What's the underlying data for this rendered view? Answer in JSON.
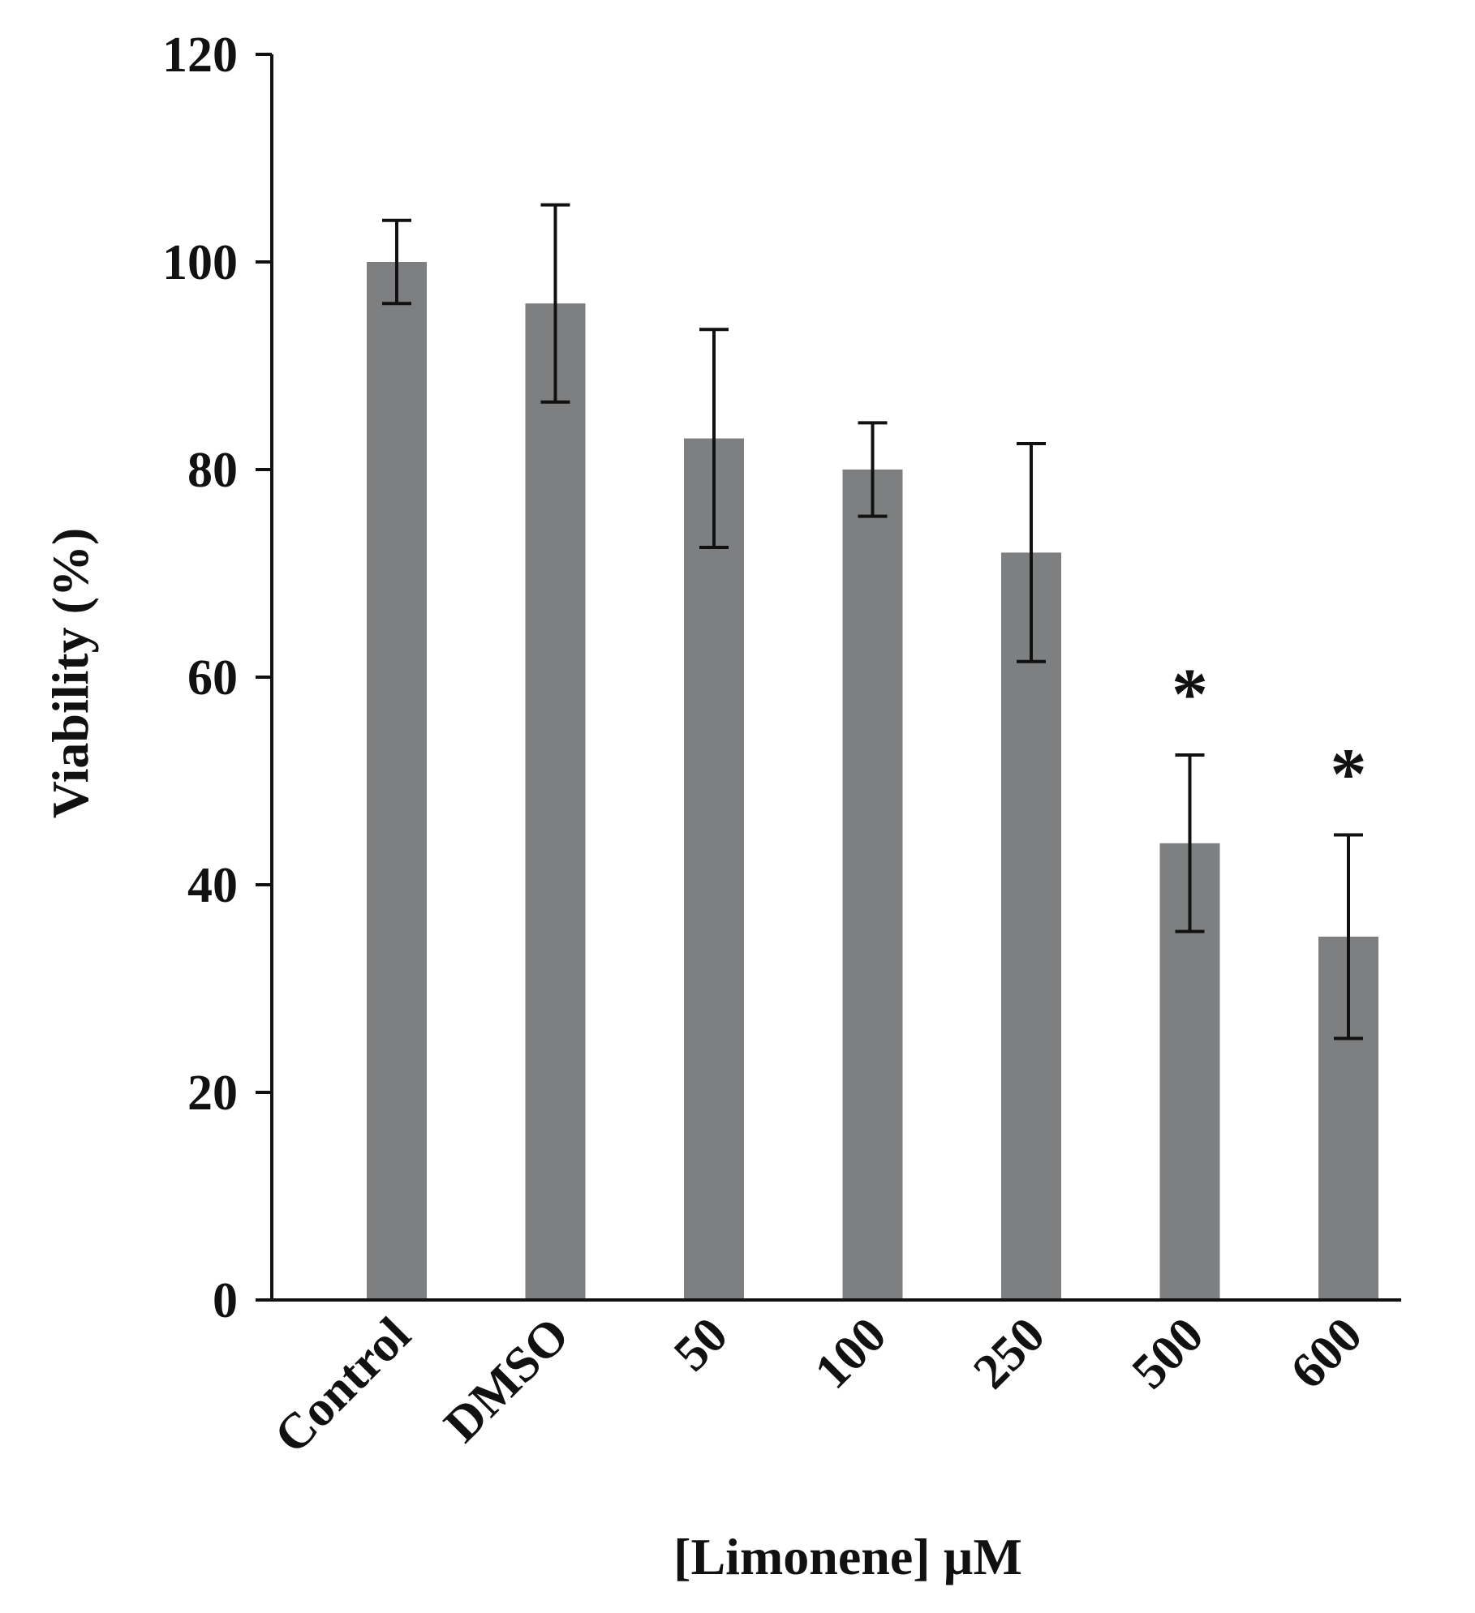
{
  "chart_data": {
    "type": "bar",
    "xlabel": "[Limonene] µM",
    "ylabel": "Viability (%)",
    "ylim": [
      0,
      120
    ],
    "yticks": [
      0,
      20,
      40,
      60,
      80,
      100,
      120
    ],
    "grid": false,
    "categories": [
      "Control",
      "DMSO",
      "50",
      "100",
      "250",
      "500",
      "600"
    ],
    "values": [
      100,
      96,
      83,
      80,
      72,
      44,
      35
    ],
    "error": [
      4,
      9.5,
      10.5,
      4.5,
      10.5,
      8.5,
      9.8
    ],
    "annotations": [
      "",
      "",
      "",
      "",
      "",
      "*",
      "*"
    ],
    "colors": {
      "bar": "#7d7f80",
      "axis": "#111111",
      "error_bar": "#111111"
    }
  }
}
